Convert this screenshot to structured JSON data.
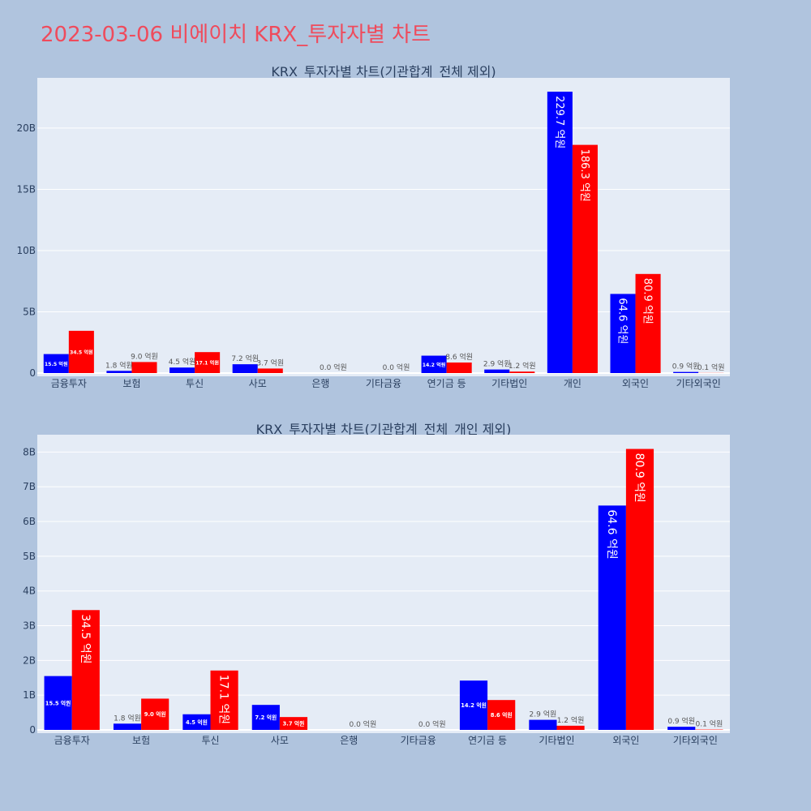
{
  "title": "2023-03-06 비에이치 KRX_투자자별 차트",
  "colors": {
    "buy": "#0000ff",
    "sell": "#ff0000",
    "plot_bg": "#e5ecf6",
    "page_bg": "#b0c4de",
    "title": "#ef4b5c"
  },
  "chart_data": [
    {
      "type": "bar",
      "title": "KRX_투자자별 차트(기관합계_전체 제외)",
      "categories": [
        "금융투자",
        "보험",
        "투신",
        "사모",
        "은행",
        "기타금융",
        "연기금 등",
        "기타법인",
        "개인",
        "외국인",
        "기타외국인"
      ],
      "series": [
        {
          "values": [
            1.55,
            0.18,
            0.45,
            0.72,
            0.0,
            0.0,
            1.42,
            0.29,
            22.97,
            6.46,
            0.09
          ],
          "labels": [
            "15.5 억원",
            "1.8 억원",
            "4.5 억원",
            "7.2 억원",
            "",
            "",
            "14.2 억원",
            "2.9 억원",
            "229.7 억원",
            "64.6 억원",
            "0.9 억원"
          ]
        },
        {
          "values": [
            3.45,
            0.9,
            1.71,
            0.37,
            0.0,
            0.0,
            0.86,
            0.12,
            18.63,
            8.09,
            0.01
          ],
          "labels": [
            "34.5 억원",
            "9.0 억원",
            "17.1 억원",
            "3.7 억원",
            "0.0 억원",
            "0.0 억원",
            "8.6 억원",
            "1.2 억원",
            "186.3 억원",
            "80.9 억원",
            "0.1 억원"
          ]
        }
      ],
      "ylim": [
        0,
        24.1
      ],
      "yticks": [
        0,
        5,
        10,
        15,
        20
      ],
      "ytick_labels": [
        "0",
        "5B",
        "10B",
        "15B",
        "20B"
      ],
      "grid": true
    },
    {
      "type": "bar",
      "title": "KRX_투자자별 차트(기관합계_전체_개인 제외)",
      "categories": [
        "금융투자",
        "보험",
        "투신",
        "사모",
        "은행",
        "기타금융",
        "연기금 등",
        "기타법인",
        "외국인",
        "기타외국인"
      ],
      "series": [
        {
          "values": [
            1.55,
            0.18,
            0.45,
            0.72,
            0.0,
            0.0,
            1.42,
            0.29,
            6.46,
            0.09
          ],
          "labels": [
            "15.5 억원",
            "1.8 억원",
            "4.5 억원",
            "7.2 억원",
            "",
            "",
            "14.2 억원",
            "2.9 억원",
            "64.6 억원",
            "0.9 억원"
          ]
        },
        {
          "values": [
            3.45,
            0.9,
            1.71,
            0.37,
            0.0,
            0.0,
            0.86,
            0.12,
            8.09,
            0.01
          ],
          "labels": [
            "34.5 억원",
            "9.0 억원",
            "17.1 억원",
            "3.7 억원",
            "0.0 억원",
            "0.0 억원",
            "8.6 억원",
            "1.2 억원",
            "80.9 억원",
            "0.1 억원"
          ]
        }
      ],
      "ylim": [
        0,
        8.5
      ],
      "yticks": [
        0,
        1,
        2,
        3,
        4,
        5,
        6,
        7,
        8
      ],
      "ytick_labels": [
        "0",
        "1B",
        "2B",
        "3B",
        "4B",
        "5B",
        "6B",
        "7B",
        "8B"
      ],
      "grid": true
    }
  ]
}
